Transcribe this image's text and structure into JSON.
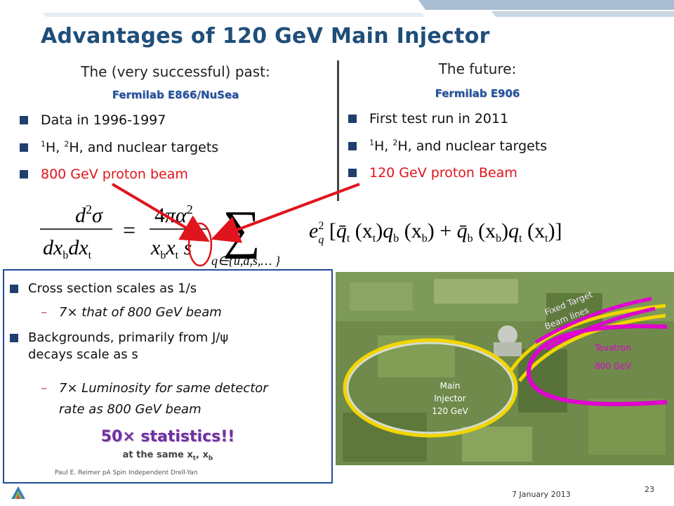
{
  "slide": {
    "title": "Advantages of 120 GeV Main Injector",
    "left": {
      "heading": "The (very successful) past:",
      "experiment": "Fermilab E866/NuSea",
      "bullet1": "Data in 1996-1997",
      "bullet2_sup1": "1",
      "bullet2_a": "H, ",
      "bullet2_sup2": "2",
      "bullet2_b": "H, and nuclear targets",
      "bullet3": "800 GeV proton beam"
    },
    "right": {
      "heading": "The future:",
      "experiment": "Fermilab E906",
      "bullet1": "First test run in 2011",
      "bullet2_sup1": "1",
      "bullet2_a": "H, ",
      "bullet2_sup2": "2",
      "bullet2_b": "H, and nuclear targets",
      "bullet3": "120 GeV proton Beam"
    },
    "box": {
      "point1": "Cross section scales as 1/s",
      "sub1": "7× that of 800 GeV beam",
      "point2_line1": "Backgrounds, primarily from J/ψ",
      "point2_line2": "decays  scale as s",
      "sub2_line1": "7× Luminosity for same detector",
      "sub2_line2": "rate as 800 GeV beam",
      "stats": "50× statistics!!",
      "same_prefix": "at the same x",
      "same_sub1": "t",
      "same_mid": ", x",
      "same_sub2": "b"
    },
    "photo": {
      "fixed_target": "Fixed Target",
      "beam_lines": "Beam lines",
      "tevatron": "Tevatron",
      "tevatron_energy": "800 GeV",
      "main": "Main",
      "injector": "Injector",
      "injector_energy": "120 GeV"
    },
    "footer": {
      "author": "Paul E. Reimer pA Spin Independent Drell-Yan",
      "date": "7 January 2013",
      "page": "23"
    }
  },
  "colors": {
    "title": "#1f4e79",
    "accent_red": "#e0141c",
    "bullet": "#1f3f6e",
    "experiment": "#1f4fa0",
    "stats": "#7030a0",
    "box_border": "#1f4e9a"
  }
}
